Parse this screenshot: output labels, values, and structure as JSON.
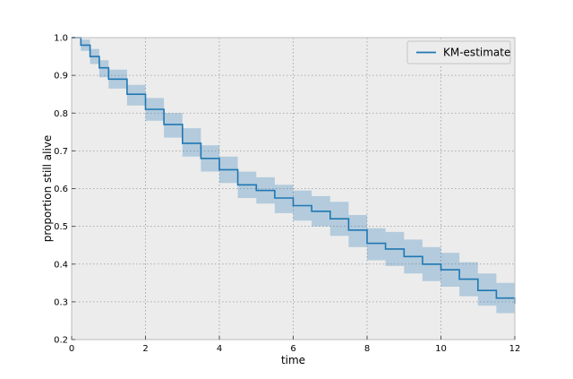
{
  "chart_data": {
    "type": "line",
    "xlabel": "time",
    "ylabel": "proportion still alive",
    "xlim": [
      0,
      12
    ],
    "ylim": [
      0.2,
      1.0
    ],
    "xticks": [
      "0",
      "2",
      "4",
      "6",
      "8",
      "10",
      "12"
    ],
    "yticks": [
      "0.2",
      "0.3",
      "0.4",
      "0.5",
      "0.6",
      "0.7",
      "0.8",
      "0.9",
      "1.0"
    ],
    "grid": true,
    "legend_position": "top-right",
    "step": true,
    "series": [
      {
        "name": "KM-estimate",
        "color": "#1f77b4",
        "band_color": "#1f77b4",
        "x": [
          0,
          0.25,
          0.5,
          0.75,
          1.0,
          1.5,
          2.0,
          2.5,
          3.0,
          3.5,
          4.0,
          4.5,
          5.0,
          5.5,
          6.0,
          6.5,
          7.0,
          7.5,
          8.0,
          8.5,
          9.0,
          9.5,
          10.0,
          10.5,
          11.0,
          11.5,
          12.0
        ],
        "y": [
          1.0,
          0.98,
          0.95,
          0.92,
          0.89,
          0.85,
          0.81,
          0.77,
          0.72,
          0.68,
          0.65,
          0.61,
          0.595,
          0.575,
          0.555,
          0.54,
          0.52,
          0.49,
          0.455,
          0.44,
          0.42,
          0.4,
          0.385,
          0.36,
          0.33,
          0.31,
          0.295
        ],
        "lower": [
          1.0,
          0.965,
          0.93,
          0.895,
          0.865,
          0.82,
          0.78,
          0.735,
          0.685,
          0.645,
          0.615,
          0.575,
          0.56,
          0.535,
          0.515,
          0.5,
          0.475,
          0.445,
          0.41,
          0.395,
          0.375,
          0.355,
          0.34,
          0.315,
          0.29,
          0.27,
          0.255
        ],
        "upper": [
          1.0,
          0.995,
          0.97,
          0.94,
          0.915,
          0.875,
          0.84,
          0.8,
          0.76,
          0.715,
          0.685,
          0.645,
          0.63,
          0.61,
          0.595,
          0.58,
          0.565,
          0.53,
          0.495,
          0.485,
          0.465,
          0.445,
          0.43,
          0.405,
          0.375,
          0.35,
          0.335
        ]
      }
    ]
  }
}
